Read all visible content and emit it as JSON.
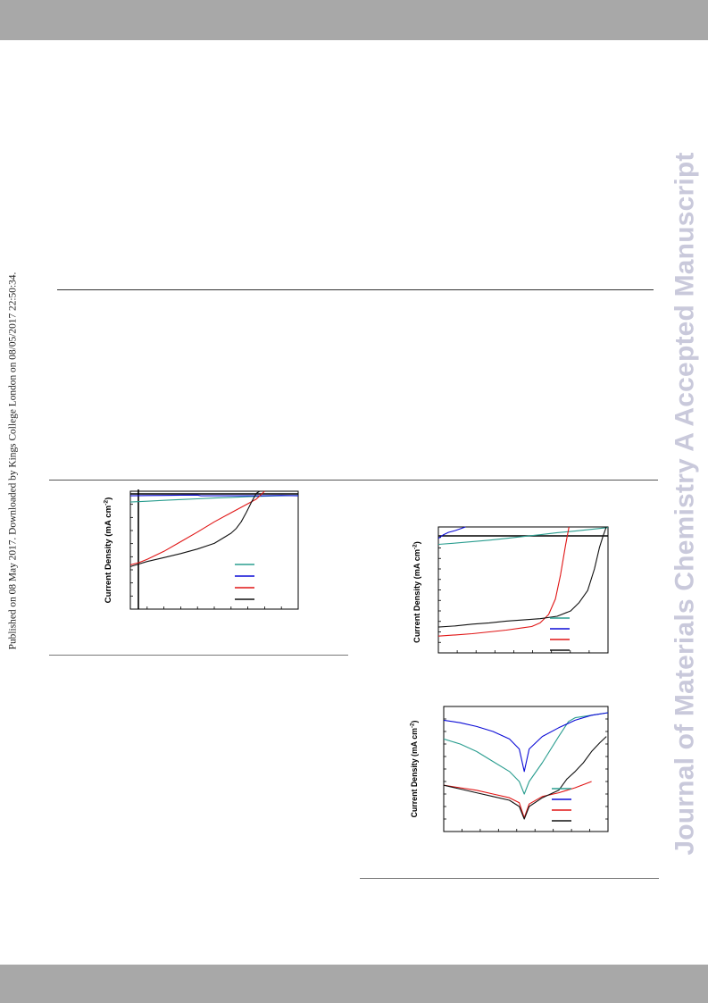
{
  "page": {
    "side_note": "Published on 08 May 2017. Downloaded by Kings College London on 08/05/2017 22:50:34.",
    "watermark": "Journal of Materials Chemistry A Accepted Manuscript",
    "colors": {
      "band": "#a8a8a8",
      "watermark": "#c9c9db",
      "rule": "#333333"
    }
  },
  "charts": {
    "series_colors": [
      "#2a9d8f",
      "#0b0bd6",
      "#e01515",
      "#111111"
    ],
    "ylabel_main": "Current Density (mA cm",
    "ylabel_sup": "-2",
    "ylabel_close": ")"
  },
  "chart_data": [
    {
      "type": "line",
      "ylabel": "Current Density (mA cm-2)",
      "xlim": [
        0,
        10
      ],
      "ylim": [
        -10,
        0.4
      ],
      "grid": false,
      "legend": "lower-right, 4 entries, labels not shown",
      "series": [
        {
          "color": "#2a9d8f",
          "x": [
            0,
            1,
            2,
            3,
            4,
            5,
            6,
            7,
            8,
            9,
            10
          ],
          "y": [
            -0.55,
            -0.48,
            -0.4,
            -0.33,
            -0.27,
            -0.2,
            -0.14,
            -0.08,
            -0.04,
            0,
            0.02
          ]
        },
        {
          "color": "#0b0bd6",
          "x": [
            0,
            1,
            2,
            3,
            4,
            4.2,
            5,
            6,
            7,
            8,
            9,
            10
          ],
          "y": [
            0,
            0.02,
            0.03,
            0.05,
            0.06,
            0,
            0,
            0,
            0,
            0,
            0.03,
            0
          ]
        },
        {
          "color": "#e01515",
          "x": [
            0,
            0.5,
            1,
            2,
            3,
            4,
            5,
            6,
            7,
            7.5,
            8
          ],
          "y": [
            -6.1,
            -5.9,
            -5.6,
            -4.9,
            -4.05,
            -3.2,
            -2.3,
            -1.5,
            -0.7,
            -0.3,
            0.4
          ]
        },
        {
          "color": "#111111",
          "x": [
            0,
            1,
            2,
            3,
            4,
            5,
            6,
            6.3,
            6.6,
            6.9,
            7.2,
            7.5,
            7.7
          ],
          "y": [
            -6.25,
            -5.8,
            -5.45,
            -5.1,
            -4.7,
            -4.2,
            -3.3,
            -2.9,
            -2.3,
            -1.5,
            -0.6,
            0.2,
            0.4
          ]
        }
      ]
    },
    {
      "type": "line",
      "ylabel": "Current Density (mA cm-2)",
      "xlim": [
        0,
        10
      ],
      "ylim": [
        -10,
        0.5
      ],
      "grid": false,
      "legend": "lower-right, 4 entries, labels not shown",
      "series": [
        {
          "color": "#2a9d8f",
          "x": [
            0,
            1,
            2,
            3,
            4,
            5,
            6,
            7,
            8,
            9,
            10
          ],
          "y": [
            -0.95,
            -0.85,
            -0.72,
            -0.6,
            -0.45,
            -0.3,
            -0.15,
            0.02,
            0.15,
            0.3,
            0.45
          ]
        },
        {
          "color": "#0b0bd6",
          "x": [
            0,
            0.3,
            0.6,
            1,
            1.3,
            1.6
          ],
          "y": [
            -0.45,
            -0.15,
            0.05,
            0.2,
            0.35,
            0.5
          ]
        },
        {
          "color": "#e01515",
          "x": [
            0,
            1,
            2,
            3,
            4,
            5,
            5.5,
            6,
            6.5,
            6.9,
            7.2,
            7.5,
            7.7
          ],
          "y": [
            -8.6,
            -8.5,
            -8.4,
            -8.25,
            -8.1,
            -7.9,
            -7.8,
            -7.5,
            -6.8,
            -5.5,
            -3.5,
            -1,
            0.5
          ]
        },
        {
          "color": "#111111",
          "x": [
            0,
            1,
            2,
            3,
            4,
            5,
            6,
            7,
            7.8,
            8.3,
            8.8,
            9.2,
            9.5,
            9.7,
            9.9
          ],
          "y": [
            -7.85,
            -7.75,
            -7.6,
            -7.5,
            -7.35,
            -7.25,
            -7.15,
            -6.95,
            -6.5,
            -5.8,
            -4.8,
            -3,
            -1.2,
            -0.3,
            0.5
          ]
        }
      ]
    },
    {
      "type": "line",
      "ylabel": "Current Density (mA cm-2)",
      "xlim": [
        0,
        10
      ],
      "ylim": [
        0,
        10
      ],
      "yscale": "log",
      "grid": false,
      "legend": "lower-right, 4 entries, labels not shown",
      "series": [
        {
          "color": "#2a9d8f",
          "x": [
            0,
            1,
            2,
            3,
            4,
            4.6,
            4.9,
            5.2,
            6,
            7,
            7.6,
            8,
            9,
            10
          ],
          "y": [
            7.4,
            7,
            6.4,
            5.6,
            4.8,
            4,
            3,
            4,
            5.5,
            7.6,
            8.8,
            9.1,
            9.3,
            9.5
          ]
        },
        {
          "color": "#0b0bd6",
          "x": [
            0,
            1,
            2,
            3,
            4,
            4.6,
            4.9,
            5.2,
            6,
            7,
            8,
            9,
            10
          ],
          "y": [
            8.9,
            8.7,
            8.4,
            8,
            7.4,
            6.6,
            4.8,
            6.6,
            7.6,
            8.3,
            8.9,
            9.3,
            9.5
          ]
        },
        {
          "color": "#e01515",
          "x": [
            0,
            1,
            2,
            3,
            4,
            4.6,
            4.9,
            5.2,
            6,
            7,
            8,
            9
          ],
          "y": [
            3.7,
            3.5,
            3.3,
            3,
            2.7,
            2.3,
            1.1,
            2.2,
            2.8,
            3.1,
            3.5,
            4
          ]
        },
        {
          "color": "#111111",
          "x": [
            0,
            1,
            2,
            3,
            4,
            4.6,
            4.9,
            5.2,
            6,
            7,
            7.5,
            8,
            8.5,
            9,
            9.5,
            9.9
          ],
          "y": [
            3.7,
            3.4,
            3.1,
            2.8,
            2.5,
            2,
            1,
            2,
            2.7,
            3.3,
            4.2,
            4.8,
            5.5,
            6.4,
            7.1,
            7.6
          ]
        }
      ]
    }
  ]
}
